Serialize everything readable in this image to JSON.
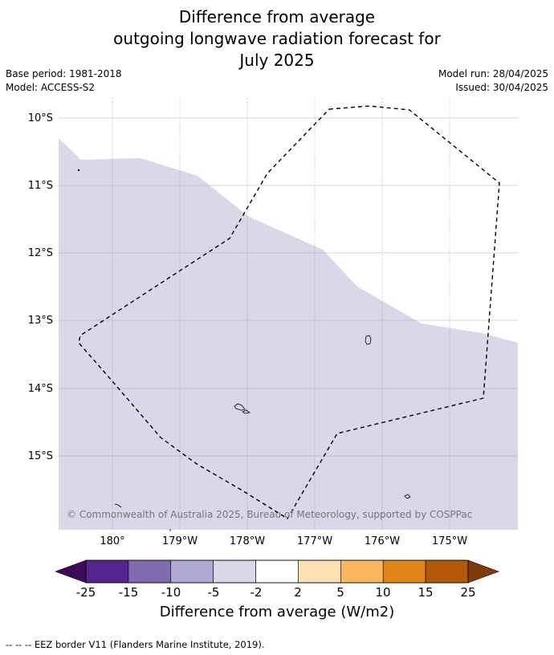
{
  "title": {
    "line1": "Difference from average",
    "line2": "outgoing longwave radiation forecast for",
    "line3": "July 2025"
  },
  "meta": {
    "base_period": "Base period: 1981-2018",
    "model": "Model: ACCESS-S2",
    "model_run": "Model run: 28/04/2025",
    "issued": "Issued: 30/04/2025"
  },
  "map": {
    "copyright": "© Commonwealth of Australia 2025, Bureau of Meteorology, supported by COSPPac",
    "lon_labels": [
      "180°",
      "179°W",
      "178°W",
      "177°W",
      "176°W",
      "175°W"
    ],
    "lat_labels": [
      "10°S",
      "11°S",
      "12°S",
      "13°S",
      "14°S",
      "15°S"
    ],
    "extent": {
      "lon_min": 179.2,
      "lon_max": -174.0,
      "lat_min": -16.1,
      "lat_max": -9.7
    },
    "region_fill_color": "#d8d8e9",
    "anomaly_category": "-5 to -2"
  },
  "colorbar": {
    "title": "Difference from average (W/m2)",
    "ticks": [
      "-25",
      "-15",
      "-10",
      "-5",
      "-2",
      "2",
      "5",
      "10",
      "15",
      "25"
    ],
    "colors": [
      "#3f0a59",
      "#56248d",
      "#7f6baf",
      "#b1a8d3",
      "#d8d8e9",
      "#ffffff",
      "#fee0b5",
      "#fcb660",
      "#e08318",
      "#b35807",
      "#7f3c0a"
    ]
  },
  "footer": {
    "legend_symbol": "-- -- --",
    "legend_text": "EEZ border V11 (Flanders Marine Institute, 2019)."
  }
}
